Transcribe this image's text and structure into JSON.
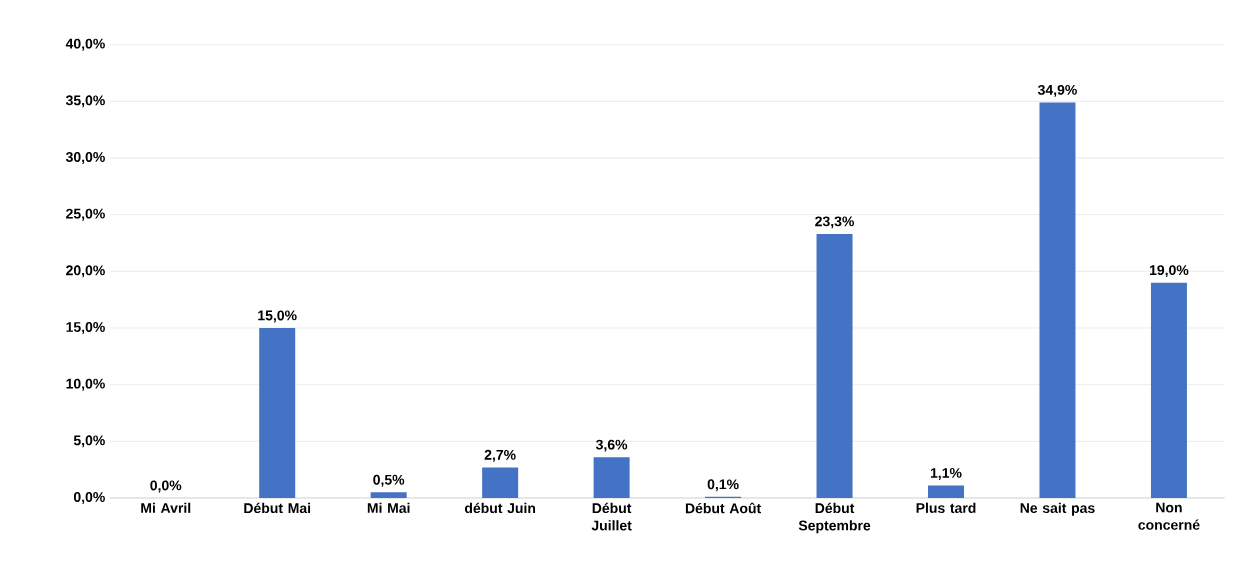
{
  "chart_data": {
    "type": "bar",
    "categories": [
      "Mi Avril",
      "Début Mai",
      "Mi Mai",
      "début Juin",
      "Début Juillet",
      "Début Août",
      "Début Septembre",
      "Plus tard",
      "Ne sait pas",
      "Non concerné"
    ],
    "values": [
      0.0,
      15.0,
      0.5,
      2.7,
      3.6,
      0.1,
      23.3,
      1.1,
      34.9,
      19.0
    ],
    "value_labels": [
      "0,0%",
      "15,0%",
      "0,5%",
      "2,7%",
      "3,6%",
      "0,1%",
      "23,3%",
      "1,1%",
      "34,9%",
      "19,0%"
    ],
    "color": "#4472c4",
    "ylim": [
      0,
      40
    ],
    "yticks": [
      {
        "value": 0,
        "label": "0,0%"
      },
      {
        "value": 5,
        "label": "5,0%"
      },
      {
        "value": 10,
        "label": "10,0%"
      },
      {
        "value": 15,
        "label": "15,0%"
      },
      {
        "value": 20,
        "label": "20,0%"
      },
      {
        "value": 25,
        "label": "25,0%"
      },
      {
        "value": 30,
        "label": "30,0%"
      },
      {
        "value": 35,
        "label": "35,0%"
      },
      {
        "value": 40,
        "label": "40,0%"
      }
    ],
    "grid": "y"
  }
}
